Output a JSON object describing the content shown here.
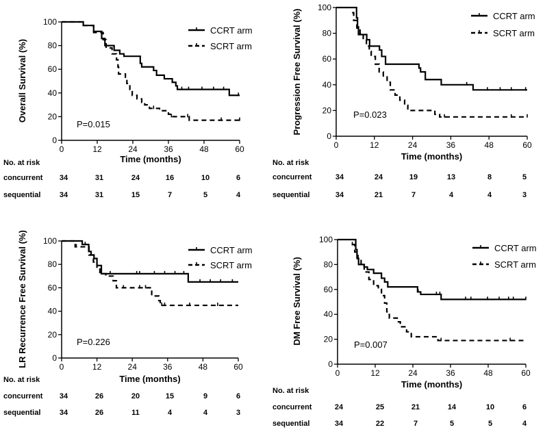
{
  "chart_data": [
    {
      "type": "line",
      "subtype": "kaplan-meier",
      "ylabel": "Overall Survival (%)",
      "xlabel": "Time (months)",
      "xlim": [
        0,
        60
      ],
      "ylim": [
        0,
        100
      ],
      "xticks": [
        "0",
        "12",
        "24",
        "36",
        "48",
        "60"
      ],
      "yticks": [
        "0",
        "20",
        "40",
        "60",
        "80",
        "100"
      ],
      "legend_position": "top-right",
      "p_value": "P=0.015",
      "series": [
        {
          "name": "CCRT arm",
          "style": "solid",
          "steps": [
            [
              0,
              100
            ],
            [
              7.3,
              97
            ],
            [
              10.8,
              92
            ],
            [
              13.5,
              86
            ],
            [
              14.6,
              80
            ],
            [
              17.7,
              76
            ],
            [
              19.6,
              73
            ],
            [
              21,
              71
            ],
            [
              26.5,
              65
            ],
            [
              27,
              62
            ],
            [
              31,
              59
            ],
            [
              32,
              55
            ],
            [
              34.6,
              52
            ],
            [
              37.3,
              49
            ],
            [
              38.5,
              46
            ],
            [
              39,
              43
            ],
            [
              56.5,
              38
            ],
            [
              60,
              38
            ]
          ],
          "censored": [
            40.5,
            42.8,
            47.3,
            51.2,
            54.6,
            59.6
          ]
        },
        {
          "name": "SCRT arm",
          "style": "dashed",
          "steps": [
            [
              0,
              100
            ],
            [
              7.3,
              97
            ],
            [
              10.8,
              91
            ],
            [
              14,
              85
            ],
            [
              15,
              78
            ],
            [
              17,
              73
            ],
            [
              18.5,
              68
            ],
            [
              19,
              62
            ],
            [
              19.2,
              56
            ],
            [
              21.5,
              52
            ],
            [
              22,
              48
            ],
            [
              23,
              43
            ],
            [
              23.8,
              38
            ],
            [
              25.4,
              35
            ],
            [
              27,
              32
            ],
            [
              28,
              30
            ],
            [
              29.6,
              27
            ],
            [
              33,
              25
            ],
            [
              36,
              22
            ],
            [
              37,
              20
            ],
            [
              43,
              17
            ],
            [
              60,
              17
            ]
          ],
          "censored": [
            31,
            37,
            42.5,
            53.8,
            60
          ]
        }
      ],
      "risk_table": {
        "title": "No. at risk",
        "rows": [
          {
            "label": "concurrent",
            "values": [
              "34",
              "31",
              "24",
              "16",
              "10",
              "6"
            ]
          },
          {
            "label": "sequential",
            "values": [
              "34",
              "31",
              "15",
              "7",
              "5",
              "4"
            ]
          }
        ]
      }
    },
    {
      "type": "line",
      "subtype": "kaplan-meier",
      "ylabel": "Progression Free Survival (%)",
      "xlabel": "Time (months)",
      "xlim": [
        0,
        60
      ],
      "ylim": [
        0,
        100
      ],
      "xticks": [
        "0",
        "12",
        "24",
        "36",
        "48",
        "60"
      ],
      "yticks": [
        "0",
        "20",
        "40",
        "60",
        "80",
        "100"
      ],
      "legend_position": "top-right",
      "p_value": "P=0.023",
      "series": [
        {
          "name": "CCRT arm",
          "style": "solid",
          "steps": [
            [
              0,
              100
            ],
            [
              6.4,
              92
            ],
            [
              6.7,
              85
            ],
            [
              7,
              79
            ],
            [
              9.6,
              75
            ],
            [
              10.5,
              70
            ],
            [
              13.6,
              67
            ],
            [
              14.3,
              62
            ],
            [
              15.5,
              56
            ],
            [
              26,
              53
            ],
            [
              26.5,
              50
            ],
            [
              28,
              44
            ],
            [
              33,
              40
            ],
            [
              43,
              36
            ],
            [
              60,
              36
            ]
          ],
          "censored": [
            41,
            47.5,
            51.5,
            55,
            59.5
          ]
        },
        {
          "name": "SCRT arm",
          "style": "dashed",
          "steps": [
            [
              5,
              96
            ],
            [
              5.5,
              90
            ],
            [
              6.5,
              84
            ],
            [
              7.5,
              80
            ],
            [
              8.5,
              76
            ],
            [
              9.5,
              70
            ],
            [
              10.4,
              66
            ],
            [
              11,
              62
            ],
            [
              12.3,
              56
            ],
            [
              13.5,
              50
            ],
            [
              14.8,
              46
            ],
            [
              16,
              42
            ],
            [
              17,
              36
            ],
            [
              18.5,
              32
            ],
            [
              20,
              28
            ],
            [
              21.5,
              24
            ],
            [
              22.5,
              20
            ],
            [
              31,
              17
            ],
            [
              32.5,
              15
            ],
            [
              60,
              15
            ]
          ],
          "censored": [
            34,
            55,
            60
          ]
        }
      ],
      "risk_table": {
        "title": "No. at risk",
        "rows": [
          {
            "label": "concurrent",
            "values": [
              "34",
              "24",
              "19",
              "13",
              "8",
              "5"
            ]
          },
          {
            "label": "sequential",
            "values": [
              "34",
              "21",
              "7",
              "4",
              "4",
              "3"
            ]
          }
        ]
      }
    },
    {
      "type": "line",
      "subtype": "kaplan-meier",
      "ylabel": "LR Recurrence Free Survival (%)",
      "xlabel": "Time (months)",
      "xlim": [
        0,
        60
      ],
      "ylim": [
        0,
        100
      ],
      "xticks": [
        "0",
        "12",
        "24",
        "36",
        "48",
        "60"
      ],
      "yticks": [
        "0",
        "20",
        "40",
        "60",
        "80",
        "100"
      ],
      "legend_position": "top-right",
      "p_value": "P=0.226",
      "series": [
        {
          "name": "CCRT arm",
          "style": "solid",
          "steps": [
            [
              0,
              100
            ],
            [
              7,
              97
            ],
            [
              9.2,
              91
            ],
            [
              10,
              88
            ],
            [
              11,
              85
            ],
            [
              12,
              79
            ],
            [
              13.5,
              72
            ],
            [
              43,
              65
            ],
            [
              60,
              65
            ]
          ],
          "censored": [
            8,
            16.5,
            25.5,
            26.5,
            31.5,
            35,
            38.5,
            41.5,
            47,
            50.5,
            54,
            58
          ]
        },
        {
          "name": "SCRT arm",
          "style": "dashed",
          "steps": [
            [
              0,
              100
            ],
            [
              4.6,
              95
            ],
            [
              9.3,
              88
            ],
            [
              10.8,
              82
            ],
            [
              12,
              76
            ],
            [
              13,
              72
            ],
            [
              15,
              70
            ],
            [
              17.5,
              66
            ],
            [
              18.6,
              60
            ],
            [
              30.6,
              53
            ],
            [
              33,
              49
            ],
            [
              33.5,
              45
            ],
            [
              60,
              45
            ]
          ],
          "censored": [
            5,
            21,
            26.5,
            28.5,
            34,
            35,
            43.5,
            53
          ]
        }
      ],
      "risk_table": {
        "title": "No. at risk",
        "rows": [
          {
            "label": "concurrent",
            "values": [
              "34",
              "26",
              "20",
              "15",
              "9",
              "6"
            ]
          },
          {
            "label": "sequential",
            "values": [
              "34",
              "26",
              "11",
              "4",
              "4",
              "3"
            ]
          }
        ]
      }
    },
    {
      "type": "line",
      "subtype": "kaplan-meier",
      "ylabel": "DM Free Survival (%)",
      "xlabel": "Time (months)",
      "xlim": [
        0,
        60
      ],
      "ylim": [
        0,
        100
      ],
      "xticks": [
        "0",
        "12",
        "24",
        "36",
        "48",
        "60"
      ],
      "yticks": [
        "0",
        "20",
        "40",
        "60",
        "80",
        "100"
      ],
      "legend_position": "top-right",
      "p_value": "P=0.007",
      "series": [
        {
          "name": "CCRT arm",
          "style": "solid",
          "steps": [
            [
              0,
              100
            ],
            [
              5.8,
              92
            ],
            [
              6.2,
              85
            ],
            [
              6.7,
              80
            ],
            [
              8.5,
              78
            ],
            [
              9.5,
              76
            ],
            [
              11.5,
              73
            ],
            [
              14,
              69
            ],
            [
              15,
              66
            ],
            [
              16,
              62
            ],
            [
              25.5,
              58
            ],
            [
              26.5,
              56
            ],
            [
              33,
              52
            ],
            [
              60,
              52
            ]
          ],
          "censored": [
            25.7,
            31.5,
            32.6,
            40.8,
            42.5,
            47.8,
            51.5,
            54.5,
            56,
            60
          ]
        },
        {
          "name": "SCRT arm",
          "style": "dashed",
          "steps": [
            [
              4.5,
              96
            ],
            [
              5.5,
              90
            ],
            [
              6.5,
              84
            ],
            [
              7.5,
              79
            ],
            [
              8.5,
              74
            ],
            [
              10,
              68
            ],
            [
              11.5,
              63
            ],
            [
              13,
              60
            ],
            [
              14,
              55
            ],
            [
              15,
              49
            ],
            [
              15.7,
              42
            ],
            [
              16.5,
              37
            ],
            [
              19,
              34
            ],
            [
              20,
              30
            ],
            [
              22,
              26
            ],
            [
              23.5,
              22
            ],
            [
              32,
              19
            ],
            [
              60,
              19
            ]
          ],
          "censored": [
            4.7,
            33,
            55
          ]
        }
      ],
      "risk_table": {
        "title": "No. at risk",
        "rows": [
          {
            "label": "concurrent",
            "values": [
              "24",
              "25",
              "21",
              "14",
              "10",
              "6"
            ]
          },
          {
            "label": "sequential",
            "values": [
              "34",
              "22",
              "7",
              "5",
              "5",
              "4"
            ]
          }
        ]
      }
    }
  ]
}
